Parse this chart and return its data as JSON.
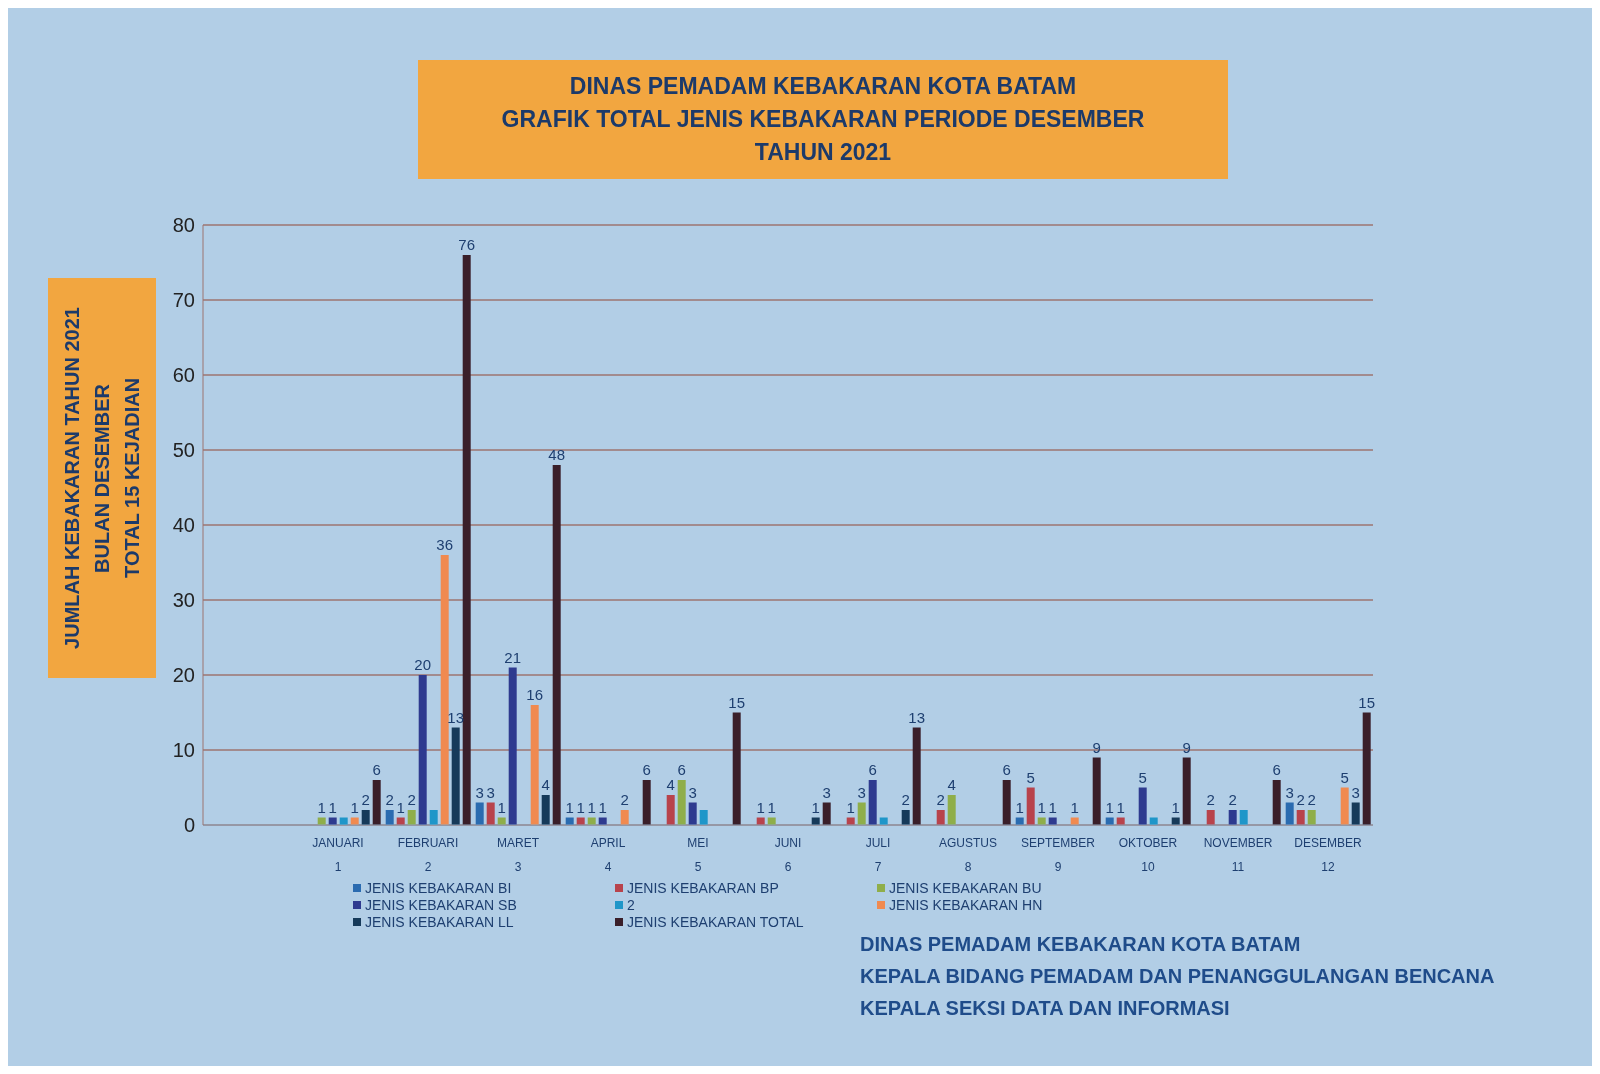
{
  "chart_data": {
    "type": "bar",
    "title": "DINAS PEMADAM KEBAKARAN KOTA BATAM\nGRAFIK TOTAL JENIS KEBAKARAN PERIODE DESEMBER\nTAHUN 2021",
    "ylabel": "JUMLAH KEBAKARAN TAHUN 2021\nBULAN DESEMBER\nTOTAL 15 KEJADIAN",
    "categories": [
      null,
      "JANUARI\n1",
      "FEBRUARI\n2",
      "MARET\n3",
      "APRIL\n4",
      "MEI\n5",
      "JUNI\n6",
      "JULI\n7",
      "AGUSTUS\n8",
      "SEPTEMBER\n9",
      "OKTOBER\n10",
      "NOVEMBER\n11",
      "DESEMBER\n12"
    ],
    "series": [
      {
        "name": "JENIS KEBAKARAN BI",
        "color": "#2a6bb0",
        "values": [
          null,
          null,
          2,
          3,
          1,
          null,
          null,
          null,
          null,
          1,
          1,
          null,
          3
        ],
        "value_labels": [
          null,
          null,
          "2",
          "3",
          "1",
          null,
          null,
          null,
          null,
          "1",
          "1",
          null,
          "3"
        ]
      },
      {
        "name": "JENIS KEBAKARAN BP",
        "color": "#b8434c",
        "values": [
          null,
          null,
          1,
          3,
          1,
          4,
          1,
          1,
          2,
          5,
          1,
          2,
          2
        ],
        "value_labels": [
          null,
          null,
          "1",
          "3",
          "1",
          "4",
          "1",
          "1",
          "2",
          "5",
          "1",
          "2",
          "2"
        ]
      },
      {
        "name": "JENIS KEBAKARAN BU",
        "color": "#8fae4a",
        "values": [
          null,
          1,
          2,
          1,
          1,
          6,
          1,
          3,
          4,
          1,
          null,
          null,
          2
        ],
        "value_labels": [
          null,
          "1",
          "2",
          "1",
          "1",
          "6",
          "1",
          "3",
          "4",
          "1",
          null,
          null,
          "2"
        ]
      },
      {
        "name": "JENIS KEBAKARAN SB",
        "color": "#2e3a8f",
        "values": [
          null,
          1,
          20,
          21,
          1,
          3,
          null,
          6,
          null,
          1,
          5,
          2,
          null
        ],
        "value_labels": [
          null,
          "1",
          "20",
          "21",
          "1",
          "3",
          null,
          "6",
          null,
          "1",
          "5",
          "2",
          null
        ]
      },
      {
        "name": "2",
        "color": "#1f96c9",
        "values": [
          null,
          1,
          2,
          null,
          null,
          2,
          null,
          1,
          null,
          null,
          1,
          2,
          null
        ]
      },
      {
        "name": "JENIS KEBAKARAN HN",
        "color": "#f08a50",
        "values": [
          null,
          1,
          36,
          16,
          2,
          null,
          null,
          null,
          null,
          1,
          null,
          null,
          5
        ],
        "value_labels": [
          null,
          "1",
          "36",
          "16",
          "2",
          null,
          null,
          null,
          null,
          "1",
          null,
          null,
          "5"
        ]
      },
      {
        "name": "JENIS KEBAKARAN LL",
        "color": "#163a5a",
        "values": [
          null,
          2,
          13,
          4,
          null,
          null,
          1,
          2,
          null,
          null,
          1,
          null,
          3
        ],
        "value_labels": [
          null,
          "2",
          "13",
          "4",
          null,
          null,
          "1",
          "2",
          null,
          null,
          "1",
          null,
          "3"
        ]
      },
      {
        "name": "JENIS KEBAKARAN TOTAL",
        "color": "#3a1f2a",
        "values": [
          null,
          6,
          76,
          48,
          6,
          15,
          3,
          13,
          6,
          9,
          9,
          6,
          15
        ],
        "value_labels": [
          null,
          "6",
          "76",
          "48",
          "6",
          "15",
          "3",
          "13",
          "6",
          "9",
          "9",
          "6",
          "15"
        ]
      }
    ],
    "ylim": [
      0,
      80
    ],
    "yticks": [
      0,
      10,
      20,
      30,
      40,
      50,
      60,
      70,
      80
    ],
    "grid": "y",
    "legend": "bottom",
    "annotations": [
      "DINAS PEMADAM KEBAKARAN KOTA BATAM",
      "KEPALA BIDANG PEMADAM DAN PENANGGULANGAN BENCANA",
      "KEPALA SEKSI DATA DAN INFORMASI"
    ]
  }
}
